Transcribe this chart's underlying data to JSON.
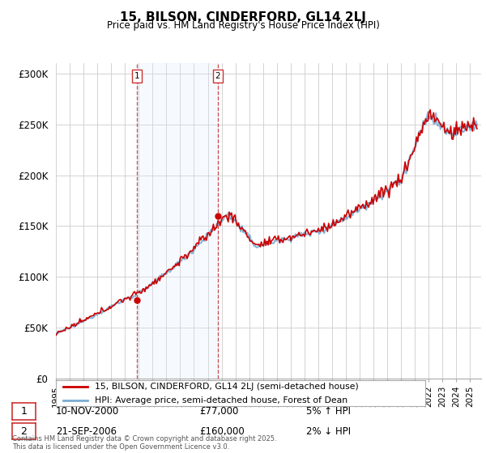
{
  "title": "15, BILSON, CINDERFORD, GL14 2LJ",
  "subtitle": "Price paid vs. HM Land Registry's House Price Index (HPI)",
  "legend_line1": "15, BILSON, CINDERFORD, GL14 2LJ (semi-detached house)",
  "legend_line2": "HPI: Average price, semi-detached house, Forest of Dean",
  "annotation1_date": "10-NOV-2000",
  "annotation1_price": "£77,000",
  "annotation1_hpi": "5% ↑ HPI",
  "annotation2_date": "21-SEP-2006",
  "annotation2_price": "£160,000",
  "annotation2_hpi": "2% ↓ HPI",
  "footer": "Contains HM Land Registry data © Crown copyright and database right 2025.\nThis data is licensed under the Open Government Licence v3.0.",
  "house_color": "#cc0000",
  "hpi_color": "#7aadd4",
  "annotation_vline_color": "#cc3333",
  "background_color": "#ffffff",
  "grid_color": "#cccccc",
  "span_color": "#ddeeff",
  "ylim": [
    0,
    310000
  ],
  "yticks": [
    0,
    50000,
    100000,
    150000,
    200000,
    250000,
    300000
  ],
  "ytick_labels": [
    "£0",
    "£50K",
    "£100K",
    "£150K",
    "£200K",
    "£250K",
    "£300K"
  ],
  "year_start": 1995,
  "year_end": 2025,
  "purchase1_year": 2000.87,
  "purchase1_value": 77000,
  "purchase2_year": 2006.72,
  "purchase2_value": 160000
}
